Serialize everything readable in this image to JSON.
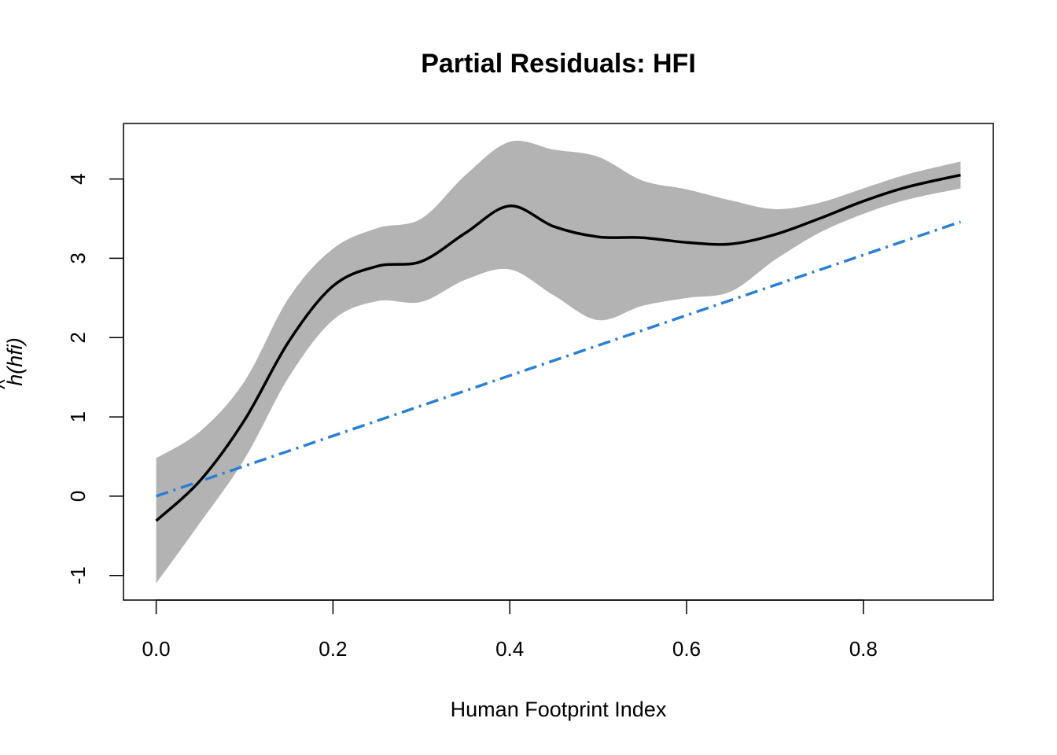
{
  "chart_data": {
    "type": "line",
    "title": "Partial Residuals: HFI",
    "xlabel": "Human Footprint Index",
    "ylabel_hat": "^",
    "ylabel": "h(hfi)",
    "xlim": [
      -0.037,
      0.947
    ],
    "ylim": [
      -1.31,
      4.7
    ],
    "x_ticks": [
      0.0,
      0.2,
      0.4,
      0.6,
      0.8
    ],
    "x_tick_labels": [
      "0.0",
      "0.2",
      "0.4",
      "0.6",
      "0.8"
    ],
    "y_ticks": [
      -1,
      0,
      1,
      2,
      3,
      4
    ],
    "y_tick_labels": [
      "-1",
      "0",
      "1",
      "2",
      "3",
      "4"
    ],
    "colors": {
      "band": "#b3b3b3",
      "smooth": "#000000",
      "linear": "#2b7fd4"
    },
    "series": [
      {
        "kind": "band",
        "x": [
          0.0,
          0.05,
          0.1,
          0.15,
          0.2,
          0.25,
          0.3,
          0.35,
          0.4,
          0.45,
          0.5,
          0.55,
          0.6,
          0.65,
          0.7,
          0.75,
          0.8,
          0.85,
          0.91
        ],
        "upper": [
          0.48,
          0.82,
          1.45,
          2.5,
          3.12,
          3.38,
          3.5,
          4.05,
          4.47,
          4.37,
          4.28,
          3.98,
          3.87,
          3.73,
          3.62,
          3.7,
          3.88,
          4.06,
          4.22
        ],
        "lower": [
          -1.1,
          -0.33,
          0.47,
          1.5,
          2.22,
          2.46,
          2.45,
          2.73,
          2.86,
          2.53,
          2.22,
          2.4,
          2.5,
          2.58,
          2.98,
          3.32,
          3.56,
          3.74,
          3.88
        ]
      },
      {
        "kind": "smooth",
        "x": [
          0.0,
          0.05,
          0.1,
          0.15,
          0.2,
          0.25,
          0.3,
          0.35,
          0.4,
          0.45,
          0.5,
          0.55,
          0.6,
          0.65,
          0.7,
          0.75,
          0.8,
          0.85,
          0.91
        ],
        "y": [
          -0.31,
          0.2,
          0.96,
          1.95,
          2.65,
          2.9,
          2.96,
          3.32,
          3.66,
          3.4,
          3.27,
          3.26,
          3.2,
          3.18,
          3.3,
          3.5,
          3.72,
          3.9,
          4.05
        ]
      },
      {
        "kind": "linear",
        "x": [
          0.0,
          0.91
        ],
        "y": [
          0.0,
          3.46
        ]
      }
    ]
  }
}
